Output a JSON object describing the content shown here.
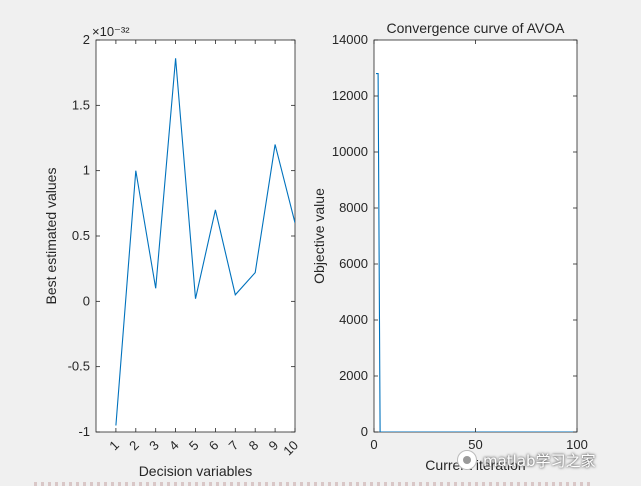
{
  "watermark": {
    "text": "matlab学习之家",
    "icon": "wechat-icon"
  },
  "colors": {
    "series": "#0072BD",
    "axes": "#262626",
    "plot_bg": "#ffffff",
    "figure_bg": "#f0f0f0"
  },
  "chart_data": [
    {
      "type": "line",
      "title": "",
      "xlabel": "Decision variables",
      "ylabel": "Best estimated values",
      "exponent_label": "×10⁻³²",
      "xlim": [
        0,
        10
      ],
      "ylim": [
        -1,
        2
      ],
      "xticks": [
        1,
        2,
        3,
        4,
        5,
        6,
        7,
        8,
        9,
        10
      ],
      "xtick_labels": [
        "1",
        "2",
        "3",
        "4",
        "5",
        "6",
        "7",
        "8",
        "9",
        "10"
      ],
      "yticks": [
        -1,
        -0.5,
        0,
        0.5,
        1,
        1.5,
        2
      ],
      "ytick_labels": [
        "-1",
        "-0.5",
        "0",
        "0.5",
        "1",
        "1.5",
        "2"
      ],
      "x": [
        1,
        2,
        3,
        4,
        5,
        6,
        7,
        8,
        9,
        10
      ],
      "y": [
        -0.95,
        1.0,
        0.1,
        1.86,
        0.02,
        0.7,
        0.05,
        0.22,
        1.2,
        0.6
      ],
      "grid": false,
      "legend": "none"
    },
    {
      "type": "line",
      "title": "Convergence curve of AVOA",
      "xlabel": "Current iteration",
      "ylabel": "Objective value",
      "xlim": [
        0,
        100
      ],
      "ylim": [
        0,
        14000
      ],
      "xticks": [
        0,
        50,
        100
      ],
      "xtick_labels": [
        "0",
        "50",
        "100"
      ],
      "yticks": [
        0,
        2000,
        4000,
        6000,
        8000,
        10000,
        12000,
        14000
      ],
      "ytick_labels": [
        "0",
        "2000",
        "4000",
        "6000",
        "8000",
        "10000",
        "12000",
        "14000"
      ],
      "x": [
        1,
        2,
        3,
        4,
        100
      ],
      "y": [
        12800,
        12800,
        0,
        0,
        0
      ],
      "grid": false,
      "legend": "none"
    }
  ]
}
